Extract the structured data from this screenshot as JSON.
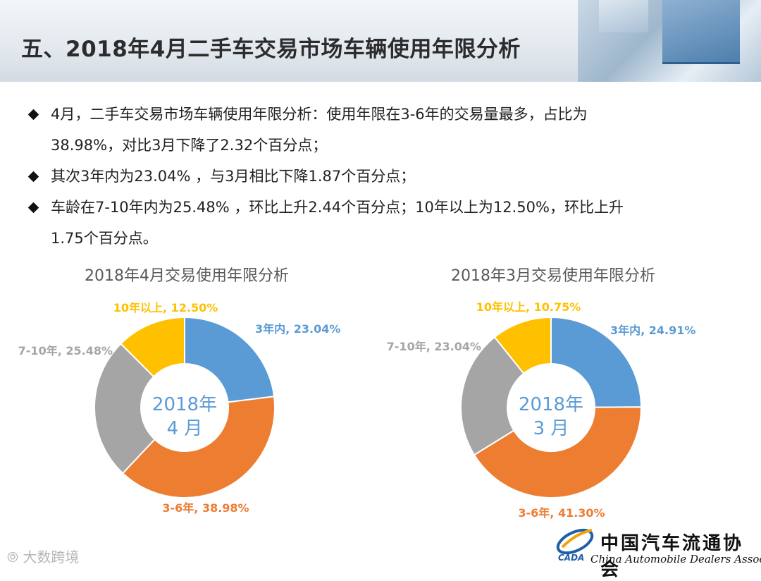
{
  "slide_title": "五、2018年4月二手车交易市场车辆使用年限分析",
  "bullets": [
    {
      "line1": "4月，二手车交易市场车辆使用年限分析：使用年限在3-6年的交易量最多，占比为",
      "line2": "38.98%，对比3月下降了2.32个百分点；"
    },
    {
      "line1": "其次3年内为23.04% ，与3月相比下降1.87个百分点；",
      "line2": ""
    },
    {
      "line1": "车龄在7-10年内为25.48% ，环比上升2.44个百分点；10年以上为12.50%，环比上升",
      "line2": "1.75个百分点。"
    }
  ],
  "chart_data": [
    {
      "type": "pie",
      "title": "2018年4月交易使用年限分析",
      "center_line1": "2018年",
      "center_line2": "4 月",
      "slices": [
        {
          "label": "3年内, 23.04%",
          "value": 23.04,
          "color": "#5b9bd5"
        },
        {
          "label": "3-6年, 38.98%",
          "value": 38.98,
          "color": "#ed7d31"
        },
        {
          "label": "7-10年, 25.48%",
          "value": 25.48,
          "color": "#a5a5a5"
        },
        {
          "label": "10年以上, 12.50%",
          "value": 12.5,
          "color": "#ffc000"
        }
      ]
    },
    {
      "type": "pie",
      "title": "2018年3月交易使用年限分析",
      "center_line1": "2018年",
      "center_line2": "3 月",
      "slices": [
        {
          "label": "3年内, 24.91%",
          "value": 24.91,
          "color": "#5b9bd5"
        },
        {
          "label": "3-6年, 41.30%",
          "value": 41.3,
          "color": "#ed7d31"
        },
        {
          "label": "7-10年, 23.04%",
          "value": 23.04,
          "color": "#a5a5a5"
        },
        {
          "label": "10年以上, 10.75%",
          "value": 10.75,
          "color": "#ffc000"
        }
      ]
    }
  ],
  "watermark": "大数跨境",
  "logo": {
    "name_cn": "中国汽车流通协会",
    "name_en": "China Automobile Dealers Association",
    "abbr": "CADA"
  }
}
